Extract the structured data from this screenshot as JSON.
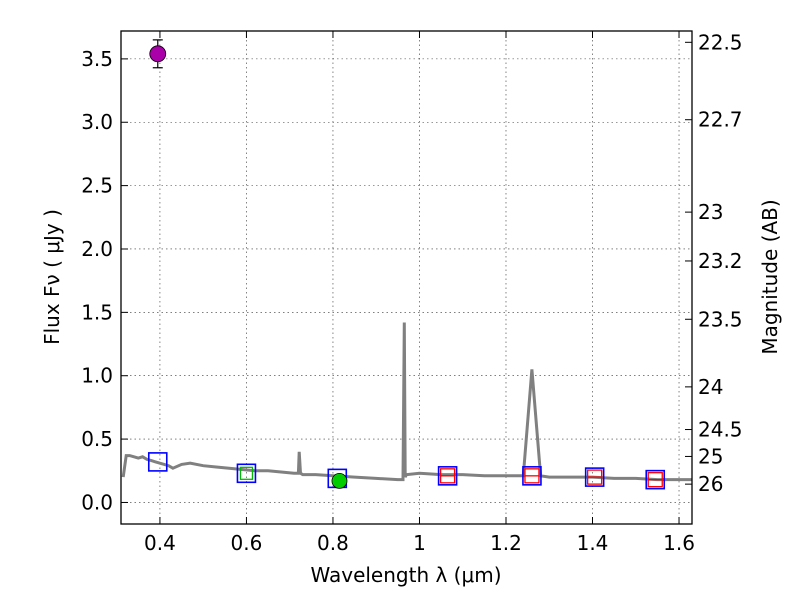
{
  "chart_data": {
    "type": "scatter",
    "xlabel": "Wavelength  λ (μm)",
    "ylabel": "Flux  Fν  ( μJy )",
    "y2label": "Magnitude (AB)",
    "xlim": [
      0.31,
      1.63
    ],
    "ylim": [
      -0.17,
      3.72
    ],
    "xticks": [
      "0.4",
      "0.6",
      "0.8",
      "1",
      "1.2",
      "1.4",
      "1.6"
    ],
    "yticks": [
      "0.0",
      "0.5",
      "1.0",
      "1.5",
      "2.0",
      "2.5",
      "3.0",
      "3.5"
    ],
    "magnitude_ticks": [
      "22.5",
      "22.7",
      "23",
      "23.2",
      "23.5",
      "24",
      "24.5",
      "25",
      "26"
    ],
    "grid": true,
    "colors": {
      "spectrum": "#808080",
      "model_box": "#0000ff",
      "detected_point": "#00cc00",
      "measured_point": "#aa00aa",
      "upper_limit": "#ff0000",
      "lower_limit": "#00bb00"
    },
    "series": [
      {
        "type": "line",
        "x": [
          0.315,
          0.322,
          0.33,
          0.34,
          0.35,
          0.36,
          0.37,
          0.38,
          0.39,
          0.4,
          0.41,
          0.42,
          0.43,
          0.45,
          0.47,
          0.5,
          0.53,
          0.56,
          0.59,
          0.62,
          0.65,
          0.68,
          0.71,
          0.72,
          0.722,
          0.725,
          0.73,
          0.76,
          0.8,
          0.85,
          0.9,
          0.95,
          0.962,
          0.965,
          0.967,
          0.97,
          1.0,
          1.05,
          1.1,
          1.15,
          1.2,
          1.24,
          1.26,
          1.28,
          1.3,
          1.35,
          1.4,
          1.45,
          1.5,
          1.55,
          1.6,
          1.63
        ],
        "y": [
          0.2,
          0.37,
          0.37,
          0.36,
          0.35,
          0.36,
          0.34,
          0.33,
          0.32,
          0.31,
          0.3,
          0.29,
          0.27,
          0.3,
          0.31,
          0.29,
          0.28,
          0.27,
          0.26,
          0.25,
          0.25,
          0.24,
          0.23,
          0.23,
          0.4,
          0.23,
          0.22,
          0.22,
          0.21,
          0.2,
          0.19,
          0.18,
          0.18,
          1.42,
          0.2,
          0.22,
          0.23,
          0.22,
          0.22,
          0.21,
          0.21,
          0.21,
          1.05,
          0.21,
          0.2,
          0.2,
          0.2,
          0.19,
          0.19,
          0.18,
          0.18,
          0.18
        ]
      },
      {
        "type": "model_boxes",
        "x": [
          0.395,
          0.6,
          0.81,
          1.065,
          1.26,
          1.405,
          1.545
        ],
        "y": [
          0.32,
          0.23,
          0.19,
          0.21,
          0.21,
          0.2,
          0.18
        ]
      },
      {
        "type": "upper_limits",
        "x": [
          1.065,
          1.26,
          1.405,
          1.545
        ],
        "y": [
          0.21,
          0.21,
          0.2,
          0.18
        ]
      },
      {
        "type": "lower_limits",
        "x": [
          0.6
        ],
        "y": [
          0.23
        ]
      },
      {
        "type": "detected",
        "x": [
          0.815
        ],
        "y": [
          0.17
        ],
        "yerr": [
          0.03
        ]
      },
      {
        "type": "measured",
        "x": [
          0.395
        ],
        "y": [
          3.54
        ],
        "yerr": [
          0.11
        ]
      }
    ]
  }
}
